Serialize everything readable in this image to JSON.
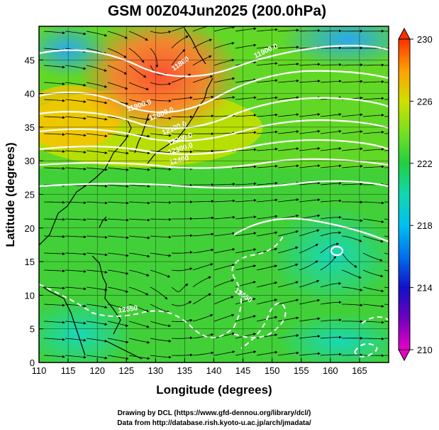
{
  "figure": {
    "title": "GSM 00Z04Jun2025 (200.0hPa)",
    "xlabel": "Longitude (degrees)",
    "ylabel": "Latitude  (degrees)",
    "credit_line1": "Drawing by DCL (https://www.gfd-dennou.org/library/dcl/)",
    "credit_line2": "Data from http://database.rish.kyoto-u.ac.jp/arch/jmadata/"
  },
  "chart_data": {
    "type": "heatmap",
    "title": "GSM 00Z04Jun2025 (200.0hPa)",
    "xlabel": "Longitude (degrees)",
    "ylabel": "Latitude  (degrees)",
    "xlim": [
      110,
      170
    ],
    "ylim": [
      0,
      50
    ],
    "x_ticks": [
      110,
      115,
      120,
      125,
      130,
      135,
      140,
      145,
      150,
      155,
      160,
      165
    ],
    "y_ticks": [
      0,
      5,
      10,
      15,
      20,
      25,
      30,
      35,
      40,
      45
    ],
    "grid": true,
    "colorbar": {
      "min": 210,
      "max": 230,
      "ticks": [
        210,
        214,
        218,
        222,
        226,
        230
      ],
      "colors": [
        "#e800c8",
        "#6a00c0",
        "#1010c8",
        "#0060f0",
        "#00b8f0",
        "#10d8c0",
        "#20d040",
        "#70e020",
        "#c8e000",
        "#ffc000",
        "#ff8000",
        "#ff3000"
      ]
    },
    "contour_labels": [
      {
        "text": "11900.0",
        "lon": 124.5,
        "lat": 40.0
      },
      {
        "text": "12000.0",
        "lon": 128.5,
        "lat": 38.5
      },
      {
        "text": "12100.0",
        "lon": 131.5,
        "lat": 36.5
      },
      {
        "text": "12200.0",
        "lon": 133.0,
        "lat": 33.5
      },
      {
        "text": "12300.0",
        "lon": 134.0,
        "lat": 31.5
      },
      {
        "text": "12400",
        "lon": 134.0,
        "lat": 28.5
      },
      {
        "text": "11900.0",
        "lon": 148.0,
        "lat": 43.5
      },
      {
        "text": "11800",
        "lon": 132.5,
        "lat": 46.5
      },
      {
        "text": "12650",
        "lon": 125.0,
        "lat": 8.0
      },
      {
        "text": "12650",
        "lon": 150.5,
        "lat": 10.5
      }
    ]
  }
}
